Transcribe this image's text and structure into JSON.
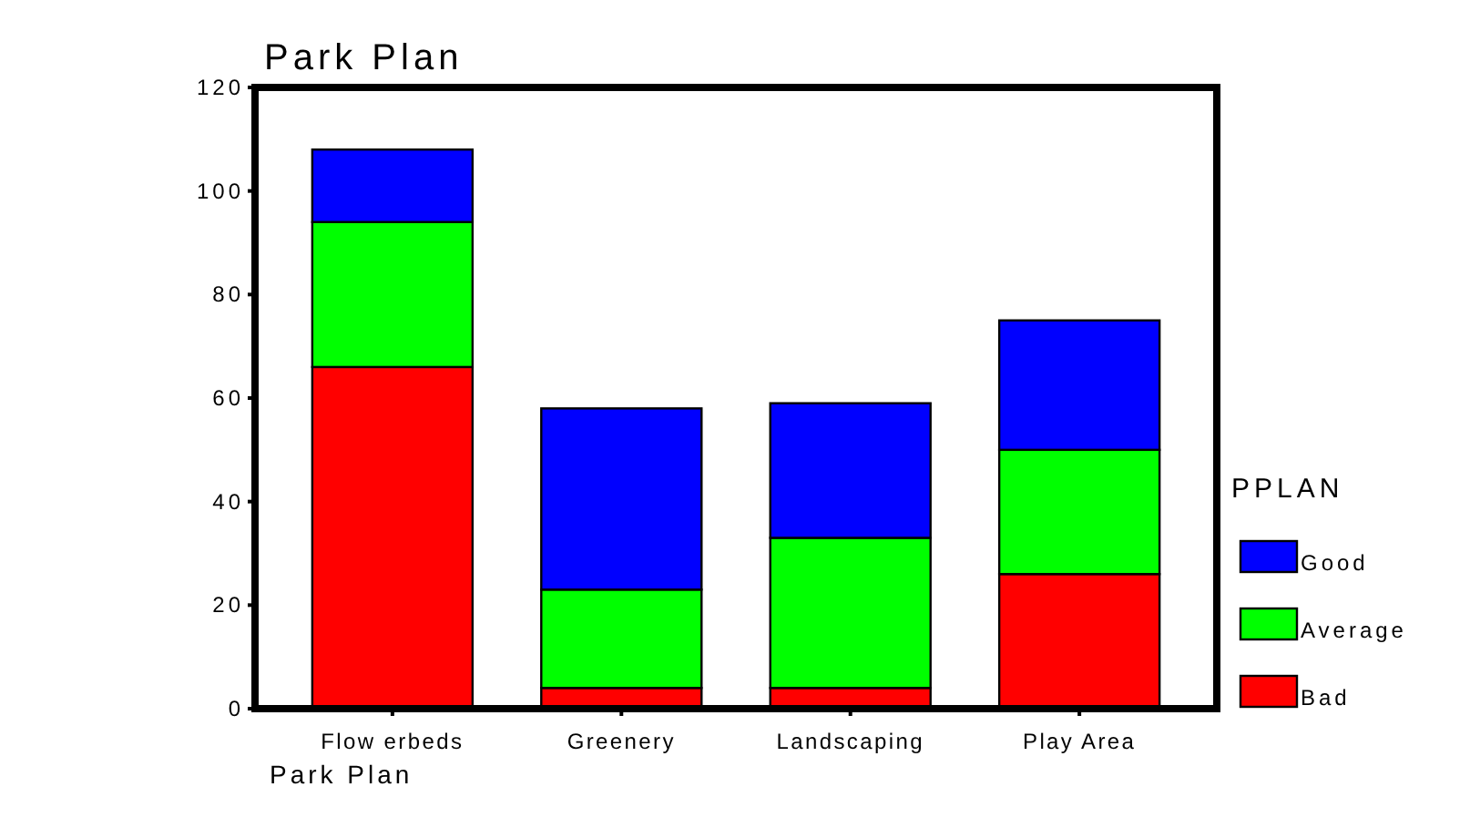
{
  "chart_data": {
    "type": "bar",
    "title": "Park Plan",
    "xlabel": "Park Plan",
    "legend_title": "PPLAN",
    "categories": [
      "Flow erbeds",
      "Greenery",
      "Landscaping",
      "Play Area"
    ],
    "stacked": true,
    "legend": "right",
    "ylim": [
      0,
      120
    ],
    "yticks": [
      0,
      20,
      40,
      60,
      80,
      100,
      120
    ],
    "series": [
      {
        "name": "Bad",
        "color": "#ff0000",
        "values": [
          66,
          4,
          4,
          26
        ]
      },
      {
        "name": "Average",
        "color": "#00ff00",
        "values": [
          28,
          19,
          29,
          24
        ]
      },
      {
        "name": "Good",
        "color": "#0000ff",
        "values": [
          14,
          35,
          26,
          25
        ]
      }
    ]
  }
}
